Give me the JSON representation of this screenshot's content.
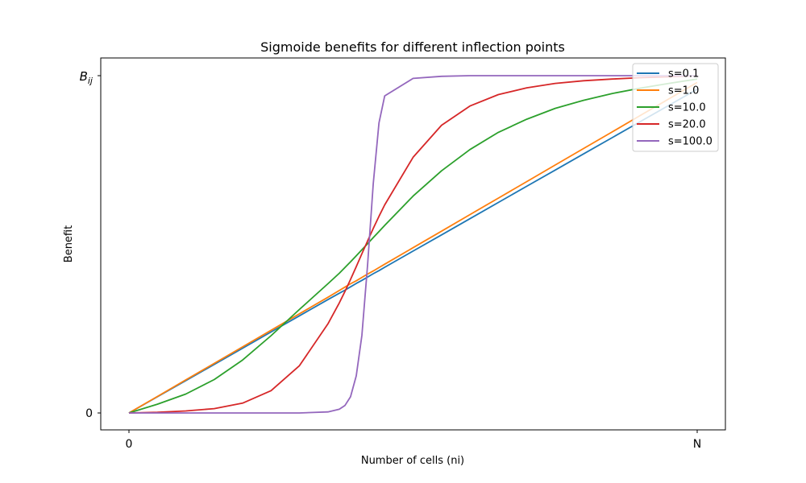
{
  "chart_data": {
    "type": "line",
    "title": "Sigmoide benefits for different inflection points",
    "xlabel": "Number of cells (ni)",
    "ylabel": "Benefit",
    "x_ticks": [
      "0",
      "N"
    ],
    "y_ticks": [
      "0",
      "B_ij"
    ],
    "xlim": [
      0,
      1
    ],
    "ylim": [
      0,
      1
    ],
    "legend_position": "top-right",
    "grid": false,
    "x": [
      0,
      0.05,
      0.1,
      0.15,
      0.2,
      0.25,
      0.3,
      0.35,
      0.37,
      0.38,
      0.39,
      0.4,
      0.41,
      0.42,
      0.43,
      0.44,
      0.45,
      0.5,
      0.55,
      0.6,
      0.65,
      0.7,
      0.75,
      0.8,
      0.85,
      0.9,
      0.95,
      1
    ],
    "series": [
      {
        "name": "s=0.1",
        "color": "#1f77b4",
        "values": [
          0,
          0.048,
          0.096,
          0.144,
          0.192,
          0.24,
          0.288,
          0.336,
          0.355,
          0.364,
          0.374,
          0.384,
          0.393,
          0.403,
          0.413,
          0.422,
          0.432,
          0.48,
          0.528,
          0.576,
          0.624,
          0.672,
          0.72,
          0.768,
          0.816,
          0.864,
          0.912,
          0.96
        ]
      },
      {
        "name": "s=1.0",
        "color": "#ff7f0e",
        "values": [
          0,
          0.049,
          0.098,
          0.147,
          0.196,
          0.245,
          0.294,
          0.343,
          0.363,
          0.373,
          0.383,
          0.392,
          0.402,
          0.412,
          0.421,
          0.431,
          0.441,
          0.49,
          0.539,
          0.588,
          0.637,
          0.686,
          0.735,
          0.784,
          0.833,
          0.882,
          0.931,
          0.98
        ]
      },
      {
        "name": "s=10.0",
        "color": "#2ca02c",
        "values": [
          0,
          0.026,
          0.056,
          0.099,
          0.157,
          0.229,
          0.307,
          0.383,
          0.414,
          0.431,
          0.448,
          0.466,
          0.484,
          0.502,
          0.52,
          0.538,
          0.556,
          0.643,
          0.718,
          0.781,
          0.832,
          0.871,
          0.903,
          0.927,
          0.947,
          0.963,
          0.977,
          0.99
        ]
      },
      {
        "name": "s=20.0",
        "color": "#d62728",
        "values": [
          0,
          0.002,
          0.006,
          0.013,
          0.029,
          0.066,
          0.14,
          0.264,
          0.326,
          0.36,
          0.396,
          0.434,
          0.472,
          0.51,
          0.547,
          0.583,
          0.617,
          0.758,
          0.853,
          0.91,
          0.944,
          0.964,
          0.977,
          0.985,
          0.99,
          0.994,
          0.997,
          1.0
        ]
      },
      {
        "name": "s=100.0",
        "color": "#9467bd",
        "values": [
          0,
          0,
          0,
          0,
          0,
          0,
          0,
          0.003,
          0.011,
          0.022,
          0.048,
          0.11,
          0.23,
          0.44,
          0.68,
          0.86,
          0.94,
          0.992,
          0.998,
          1,
          1,
          1,
          1,
          1,
          1,
          1,
          1,
          1
        ]
      }
    ]
  }
}
